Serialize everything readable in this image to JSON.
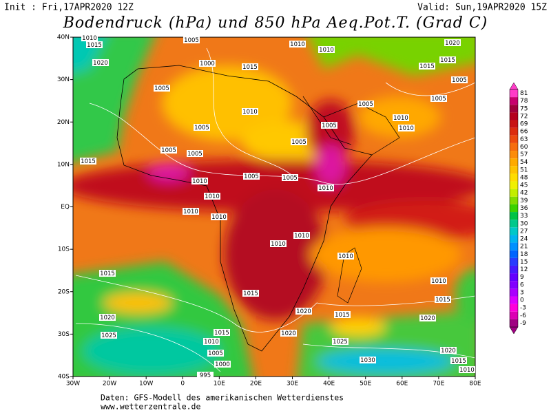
{
  "header": {
    "init": "Init : Fri,17APR2020 12Z",
    "valid": "Valid: Sun,19APR2020 15Z",
    "title": "Bodendruck (hPa) und 850 hPa Aeq.Pot.T. (Grad C)"
  },
  "map": {
    "lat_labels": [
      "40N",
      "30N",
      "20N",
      "10N",
      "EQ",
      "10S",
      "20S",
      "30S",
      "40S"
    ],
    "lon_labels": [
      "30W",
      "20W",
      "10W",
      "0",
      "10E",
      "20E",
      "30E",
      "40E",
      "50E",
      "60E",
      "70E",
      "80E"
    ],
    "isobar_labels": [
      1010,
      1015,
      1005,
      1010,
      1010,
      1020,
      1020,
      1000,
      1015,
      1015,
      1015,
      1005,
      1005,
      1005,
      1005,
      1010,
      1010,
      1010,
      1005,
      1005,
      1005,
      1005,
      1005,
      1015,
      1005,
      1005,
      1010,
      1010,
      1010,
      1010,
      1010,
      1010,
      1010,
      1010,
      1015,
      1010,
      1015,
      1015,
      1020,
      1015,
      1020,
      1020,
      1015,
      1025,
      1020,
      1010,
      1025,
      1005,
      1020,
      1000,
      1030,
      1015,
      1010,
      995
    ]
  },
  "legend": {
    "values": [
      81,
      78,
      75,
      72,
      69,
      66,
      63,
      60,
      57,
      54,
      51,
      48,
      45,
      42,
      39,
      36,
      33,
      30,
      27,
      24,
      21,
      18,
      15,
      12,
      9,
      6,
      3,
      0,
      -3,
      -6,
      -9
    ],
    "colors": [
      "#ff3cc8",
      "#c8006e",
      "#a0003c",
      "#b4001e",
      "#c81414",
      "#dc2d0f",
      "#ec4b0f",
      "#f66e0f",
      "#fc8c0a",
      "#ffaa00",
      "#ffc300",
      "#ffdc00",
      "#f0f000",
      "#c3ee00",
      "#82dc00",
      "#3cd200",
      "#00c346",
      "#00c88c",
      "#00c8c8",
      "#00b4f0",
      "#0091ff",
      "#0064ff",
      "#283cff",
      "#4619ff",
      "#6400ff",
      "#8200ff",
      "#aa00ff",
      "#dc00ff",
      "#ff00dc",
      "#dc00b4",
      "#a00082"
    ]
  },
  "footer": {
    "source": "Daten: GFS-Modell des amerikanischen Wetterdienstes",
    "url": "www.wetterzentrale.de"
  }
}
